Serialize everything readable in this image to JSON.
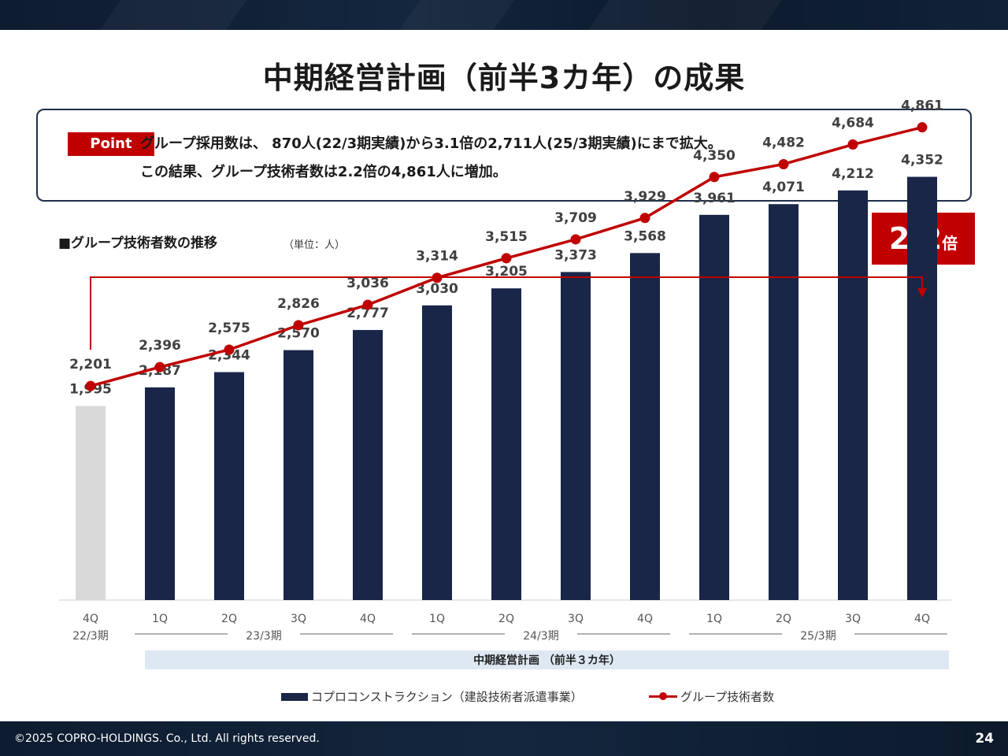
{
  "page": {
    "title": "中期経営計画（前半3カ年）の成果",
    "footer_copyright": "©2025 COPRO-HOLDINGS. Co., Ltd. All rights reserved.",
    "page_number": "24"
  },
  "point": {
    "badge": "Point",
    "line1": "グループ採用数は、 870人(22/3期実績)から3.1倍の2,711人(25/3期実績)にまで拡大。",
    "line2": "この結果、グループ技術者数は2.2倍の4,861人に増加。"
  },
  "chart_header": {
    "title": "■グループ技術者数の推移",
    "unit": "（単位：人）",
    "multiplier_value": "2.2",
    "multiplier_unit": "倍"
  },
  "legend": {
    "bar_label": "コプロコンストラクション（建設技術者派遣事業）",
    "line_label": "グループ技術者数"
  },
  "colors": {
    "bar": "#1a2648",
    "bar_base": "#d9d9d9",
    "line": "#c00000",
    "plan_band": "#dde8f3"
  },
  "chart_data": {
    "type": "bar",
    "categories": [
      "4Q",
      "1Q",
      "2Q",
      "3Q",
      "4Q",
      "1Q",
      "2Q",
      "3Q",
      "4Q",
      "1Q",
      "2Q",
      "3Q",
      "4Q"
    ],
    "fiscal_years": [
      {
        "label": "22/3期",
        "from": 0,
        "to": 0
      },
      {
        "label": "23/3期",
        "from": 1,
        "to": 4
      },
      {
        "label": "24/3期",
        "from": 5,
        "to": 8
      },
      {
        "label": "25/3期",
        "from": 9,
        "to": 12
      }
    ],
    "series": [
      {
        "name": "コプロコンストラクション（建設技術者派遣事業）",
        "type": "bar",
        "values": [
          1995,
          2187,
          2344,
          2570,
          2777,
          3030,
          3205,
          3373,
          3568,
          3961,
          4071,
          4212,
          4352
        ]
      },
      {
        "name": "グループ技術者数",
        "type": "line",
        "values": [
          2201,
          2396,
          2575,
          2826,
          3036,
          3314,
          3515,
          3709,
          3929,
          4350,
          4482,
          4684,
          4861
        ]
      }
    ],
    "plan_band": {
      "label": "中期経営計画 （前半３カ年）",
      "from": 1,
      "to": 12
    },
    "ylim": [
      0,
      5000
    ]
  }
}
